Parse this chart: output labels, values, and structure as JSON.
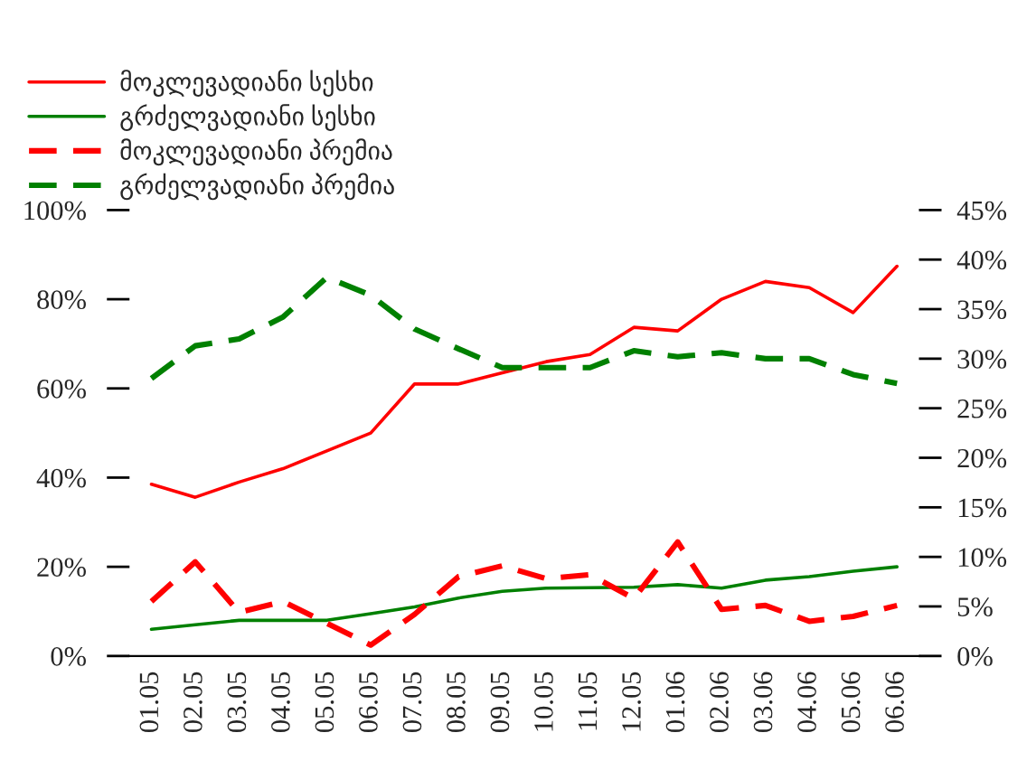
{
  "chart_data": {
    "type": "line",
    "categories": [
      "01.05",
      "02.05",
      "03.05",
      "04.05",
      "05.05",
      "06.05",
      "07.05",
      "08.05",
      "09.05",
      "10.05",
      "11.05",
      "12.05",
      "01.06",
      "02.06",
      "03.06",
      "04.06",
      "05.06",
      "06.06"
    ],
    "series": [
      {
        "name": "მოკლევადიანი სესხი",
        "color": "#ff0000",
        "line_style": "solid",
        "values": [
          38.5,
          35.6,
          39,
          42,
          46,
          50,
          61,
          61,
          63.5,
          66,
          67.6,
          73.7,
          72.9,
          80,
          84,
          82.6,
          77,
          87.4
        ]
      },
      {
        "name": "გრძელვადიანი სესხი",
        "color": "#008000",
        "line_style": "solid",
        "values": [
          6,
          7,
          8,
          8,
          8,
          9.5,
          11,
          13,
          14.5,
          15.2,
          15.3,
          15.4,
          16,
          15.2,
          17,
          17.8,
          19,
          20
        ]
      },
      {
        "name": "მოკლევადიანი პრემია",
        "color": "#ff0000",
        "line_style": "dashed",
        "axis": "y2",
        "values": [
          5.5,
          9.5,
          4.4,
          5.5,
          3.3,
          1.1,
          4.2,
          8,
          9.1,
          7.8,
          8.2,
          5.8,
          11.5,
          4.7,
          5.1,
          3.5,
          4,
          5.1
        ]
      },
      {
        "name": "გრძელვადიანი პრემია",
        "color": "#008000",
        "line_style": "dashed",
        "axis": "y2",
        "values": [
          28,
          31.3,
          32,
          34.2,
          38.2,
          36.4,
          33,
          31,
          29.1,
          29.1,
          29.1,
          30.8,
          30.2,
          30.6,
          30,
          30,
          28.4,
          27.5
        ]
      }
    ],
    "ylim": [
      0,
      100
    ],
    "yticks": [
      {
        "value": 0,
        "label": "0%"
      },
      {
        "value": 20,
        "label": "20%"
      },
      {
        "value": 40,
        "label": "40%"
      },
      {
        "value": 60,
        "label": "60%"
      },
      {
        "value": 80,
        "label": "80%"
      },
      {
        "value": 100,
        "label": "100%"
      }
    ],
    "y2lim": [
      0,
      45
    ],
    "y2ticks": [
      {
        "value": 0,
        "label": "0%"
      },
      {
        "value": 5,
        "label": "5%"
      },
      {
        "value": 10,
        "label": "10%"
      },
      {
        "value": 15,
        "label": "15%"
      },
      {
        "value": 20,
        "label": "20%"
      },
      {
        "value": 25,
        "label": "25%"
      },
      {
        "value": 30,
        "label": "30%"
      },
      {
        "value": 35,
        "label": "35%"
      },
      {
        "value": 40,
        "label": "40%"
      },
      {
        "value": 45,
        "label": "45%"
      }
    ],
    "legend": "top left",
    "grid": false,
    "marker": "none"
  }
}
